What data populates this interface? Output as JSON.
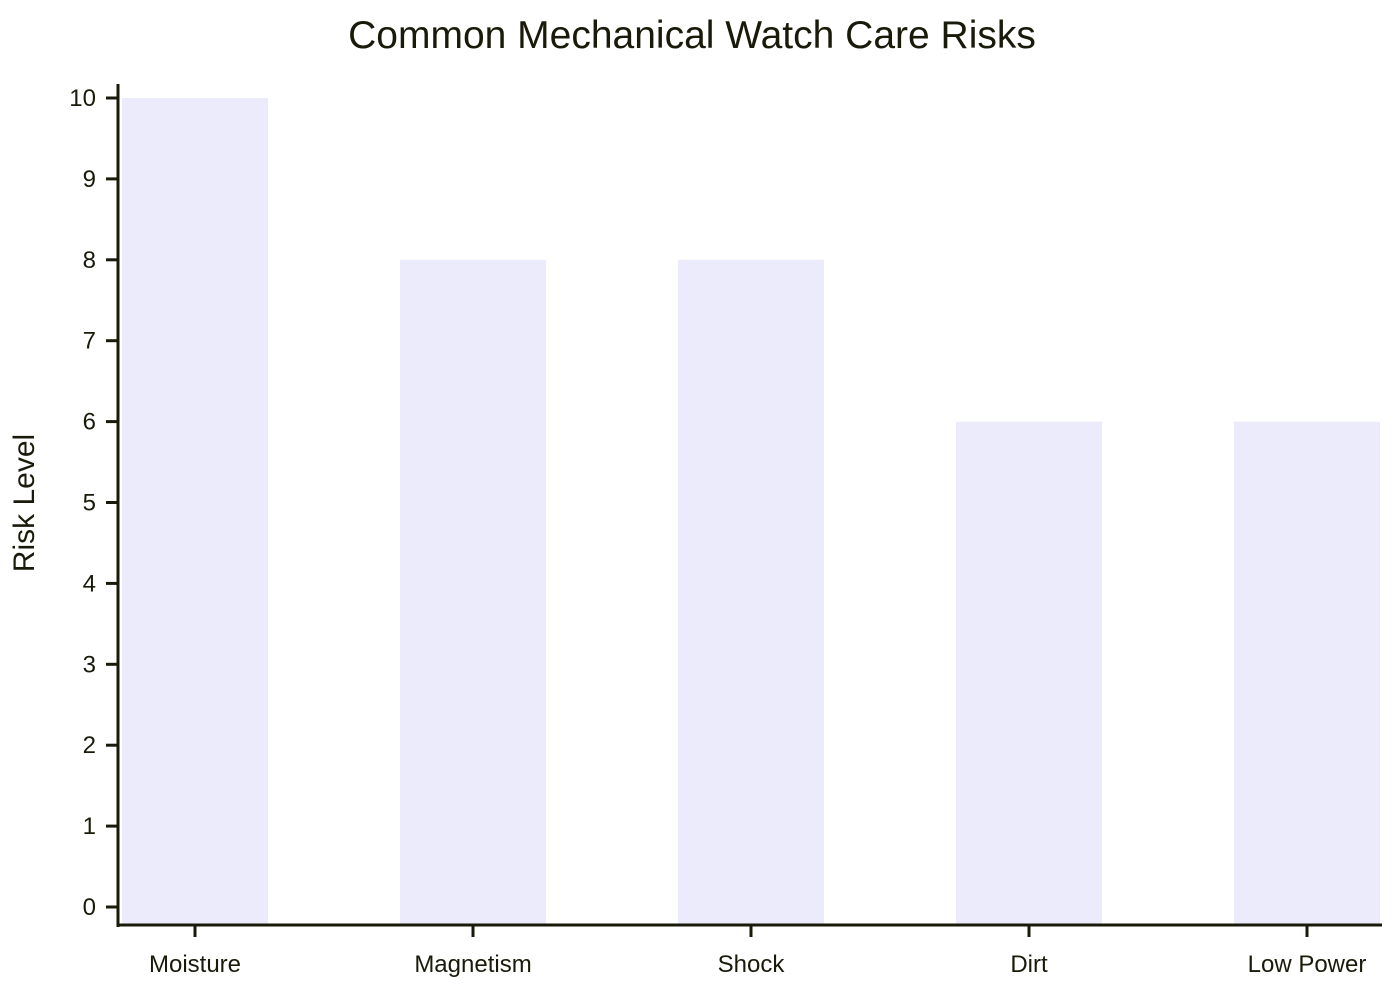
{
  "chart_data": {
    "type": "bar",
    "title": "Common Mechanical Watch Care Risks",
    "xlabel": "",
    "ylabel": "Risk Level",
    "categories": [
      "Moisture",
      "Magnetism",
      "Shock",
      "Dirt",
      "Low Power"
    ],
    "values": [
      10,
      8,
      8,
      6,
      6
    ],
    "ylim": [
      0,
      10
    ],
    "yticks": [
      0,
      1,
      2,
      3,
      4,
      5,
      6,
      7,
      8,
      9,
      10
    ],
    "grid": false,
    "legend": "none",
    "colors": {
      "bar": "#ebebfc",
      "axis": "#1a1a0a",
      "text": "#1a1a0a"
    }
  }
}
